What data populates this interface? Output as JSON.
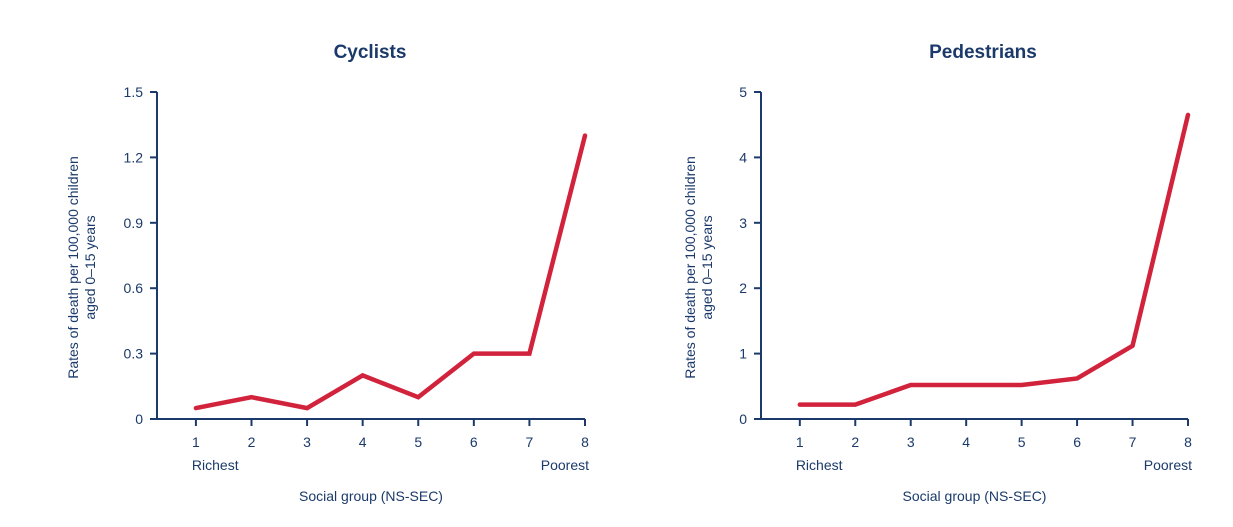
{
  "colors": {
    "axis": "#1b3a6b",
    "series": "#d2233c"
  },
  "chart_data": [
    {
      "type": "line",
      "title": "Cyclists",
      "xlabel": "Social group (NS-SEC)",
      "ylabel": "Rates of death per 100,000 children aged 0–15 years",
      "ylabel_lines": [
        "Rates of death per 100,000 children",
        "aged 0–15 years"
      ],
      "x": [
        1,
        2,
        3,
        4,
        5,
        6,
        7,
        8
      ],
      "x_tick_labels": [
        "1",
        "2",
        "3",
        "4",
        "5",
        "6",
        "7",
        "8"
      ],
      "x_end_labels": {
        "left": "Richest",
        "right": "Poorest"
      },
      "ylim": [
        0,
        1.5
      ],
      "y_ticks": [
        0,
        0.3,
        0.6,
        0.9,
        1.2,
        1.5
      ],
      "y_tick_labels": [
        "0",
        "0.3",
        "0.6",
        "0.9",
        "1.2",
        "1.5"
      ],
      "grid": false,
      "series": [
        {
          "values": [
            0.05,
            0.1,
            0.05,
            0.2,
            0.1,
            0.3,
            0.3,
            1.3
          ]
        }
      ]
    },
    {
      "type": "line",
      "title": "Pedestrians",
      "xlabel": "Social group (NS-SEC)",
      "ylabel": "Rates of death per 100,000 children aged 0–15 years",
      "ylabel_lines": [
        "Rates of death per 100,000 children",
        "aged 0–15 years"
      ],
      "x": [
        1,
        2,
        3,
        4,
        5,
        6,
        7,
        8
      ],
      "x_tick_labels": [
        "1",
        "2",
        "3",
        "4",
        "5",
        "6",
        "7",
        "8"
      ],
      "x_end_labels": {
        "left": "Richest",
        "right": "Poorest"
      },
      "ylim": [
        0,
        5
      ],
      "y_ticks": [
        0,
        1,
        2,
        3,
        4,
        5
      ],
      "y_tick_labels": [
        "0",
        "1",
        "2",
        "3",
        "4",
        "5"
      ],
      "grid": false,
      "series": [
        {
          "values": [
            0.22,
            0.22,
            0.52,
            0.52,
            0.52,
            0.62,
            1.12,
            4.65
          ]
        }
      ]
    }
  ]
}
